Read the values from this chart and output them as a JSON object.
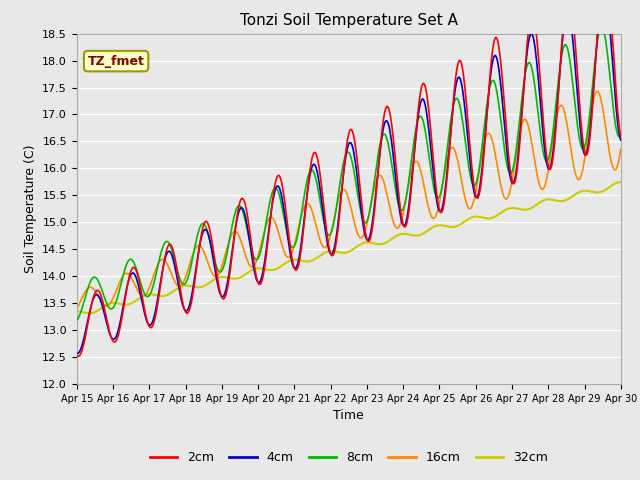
{
  "title": "Tonzi Soil Temperature Set A",
  "xlabel": "Time",
  "ylabel": "Soil Temperature (C)",
  "ylim": [
    12.0,
    18.5
  ],
  "yticks": [
    12.0,
    12.5,
    13.0,
    13.5,
    14.0,
    14.5,
    15.0,
    15.5,
    16.0,
    16.5,
    17.0,
    17.5,
    18.0,
    18.5
  ],
  "colors": {
    "2cm": "#ff0000",
    "4cm": "#0000cc",
    "8cm": "#00bb00",
    "16cm": "#ff8800",
    "32cm": "#cccc00"
  },
  "legend_label": "TZ_fmet",
  "bg_color": "#e8e8e8",
  "grid_color": "#ffffff",
  "n_points": 720,
  "n_days": 15
}
